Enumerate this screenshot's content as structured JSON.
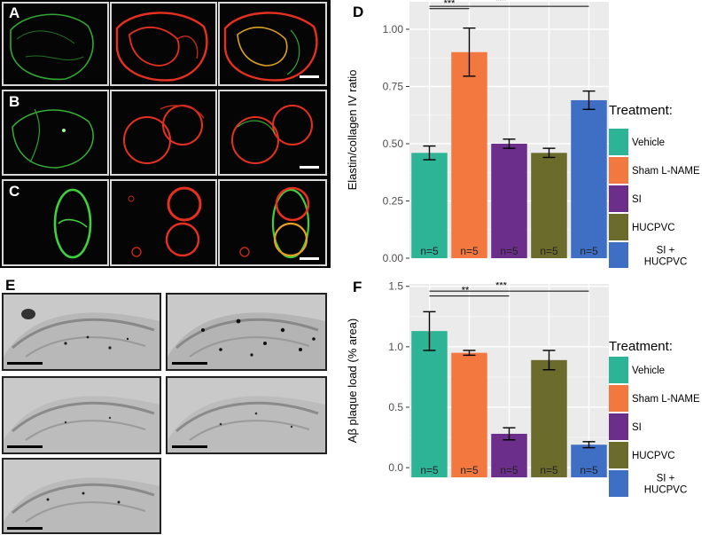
{
  "panels": {
    "a": "A",
    "b": "B",
    "c": "C",
    "d": "D",
    "e": "E",
    "f": "F"
  },
  "colors": {
    "vehicle": "#2db396",
    "sham": "#f2783f",
    "si": "#6b2e8a",
    "huc": "#6b6b2c",
    "si_huc": "#3f6fc4",
    "green_stain": "#3fcf3f",
    "red_stain": "#e53020",
    "panel_bg": "#ebebeb"
  },
  "chart_data": [
    {
      "type": "bar",
      "panel": "D",
      "categories": [
        "Vehicle",
        "Sham L-NAME",
        "SI",
        "HUCPVC",
        "SI + HUCPVC"
      ],
      "values": [
        0.46,
        0.9,
        0.5,
        0.46,
        0.69
      ],
      "errors": [
        0.03,
        0.105,
        0.02,
        0.02,
        0.04
      ],
      "bar_labels": [
        "n=5",
        "n=5",
        "n=5",
        "n=5",
        "n=5"
      ],
      "ylabel": "Elastin/collagen IV ratio",
      "ylim": [
        0,
        1.12
      ],
      "yticks": [
        "0.00",
        "0.25",
        "0.50",
        "0.75",
        "1.00"
      ],
      "ytick_values": [
        0,
        0.25,
        0.5,
        0.75,
        1.0
      ],
      "significance": [
        {
          "from": 0,
          "to": 1,
          "label": "***",
          "level": 1.09
        },
        {
          "from": 0,
          "to": 4,
          "label": "***",
          "level": 1.1
        }
      ],
      "legend": {
        "title": "Treatment:",
        "entries": [
          "Vehicle",
          "Sham L-NAME",
          "SI",
          "HUCPVC",
          "SI +\nHUCPVC"
        ]
      }
    },
    {
      "type": "bar",
      "panel": "F",
      "categories": [
        "Vehicle",
        "Sham L-NAME",
        "SI",
        "HUCPVC",
        "SI + HUCPVC"
      ],
      "values": [
        1.13,
        0.95,
        0.28,
        0.89,
        0.19
      ],
      "errors": [
        0.16,
        0.02,
        0.05,
        0.08,
        0.025
      ],
      "bar_labels": [
        "n=5",
        "n=5",
        "n=5",
        "n=5",
        "n=5"
      ],
      "ylabel": "Aβ plaque load (% area)",
      "ylim": [
        -0.08,
        1.52
      ],
      "yticks": [
        "0.0",
        "0.5",
        "1.0",
        "1.5"
      ],
      "ytick_values": [
        0,
        0.5,
        1.0,
        1.5
      ],
      "significance": [
        {
          "from": 0,
          "to": 2,
          "label": "**",
          "level": 1.42
        },
        {
          "from": 0,
          "to": 4,
          "label": "***",
          "level": 1.46
        }
      ],
      "legend": {
        "title": "Treatment:",
        "entries": [
          "Vehicle",
          "Sham L-NAME",
          "SI",
          "HUCPVC",
          "SI +\nHUCPVC"
        ]
      }
    }
  ]
}
